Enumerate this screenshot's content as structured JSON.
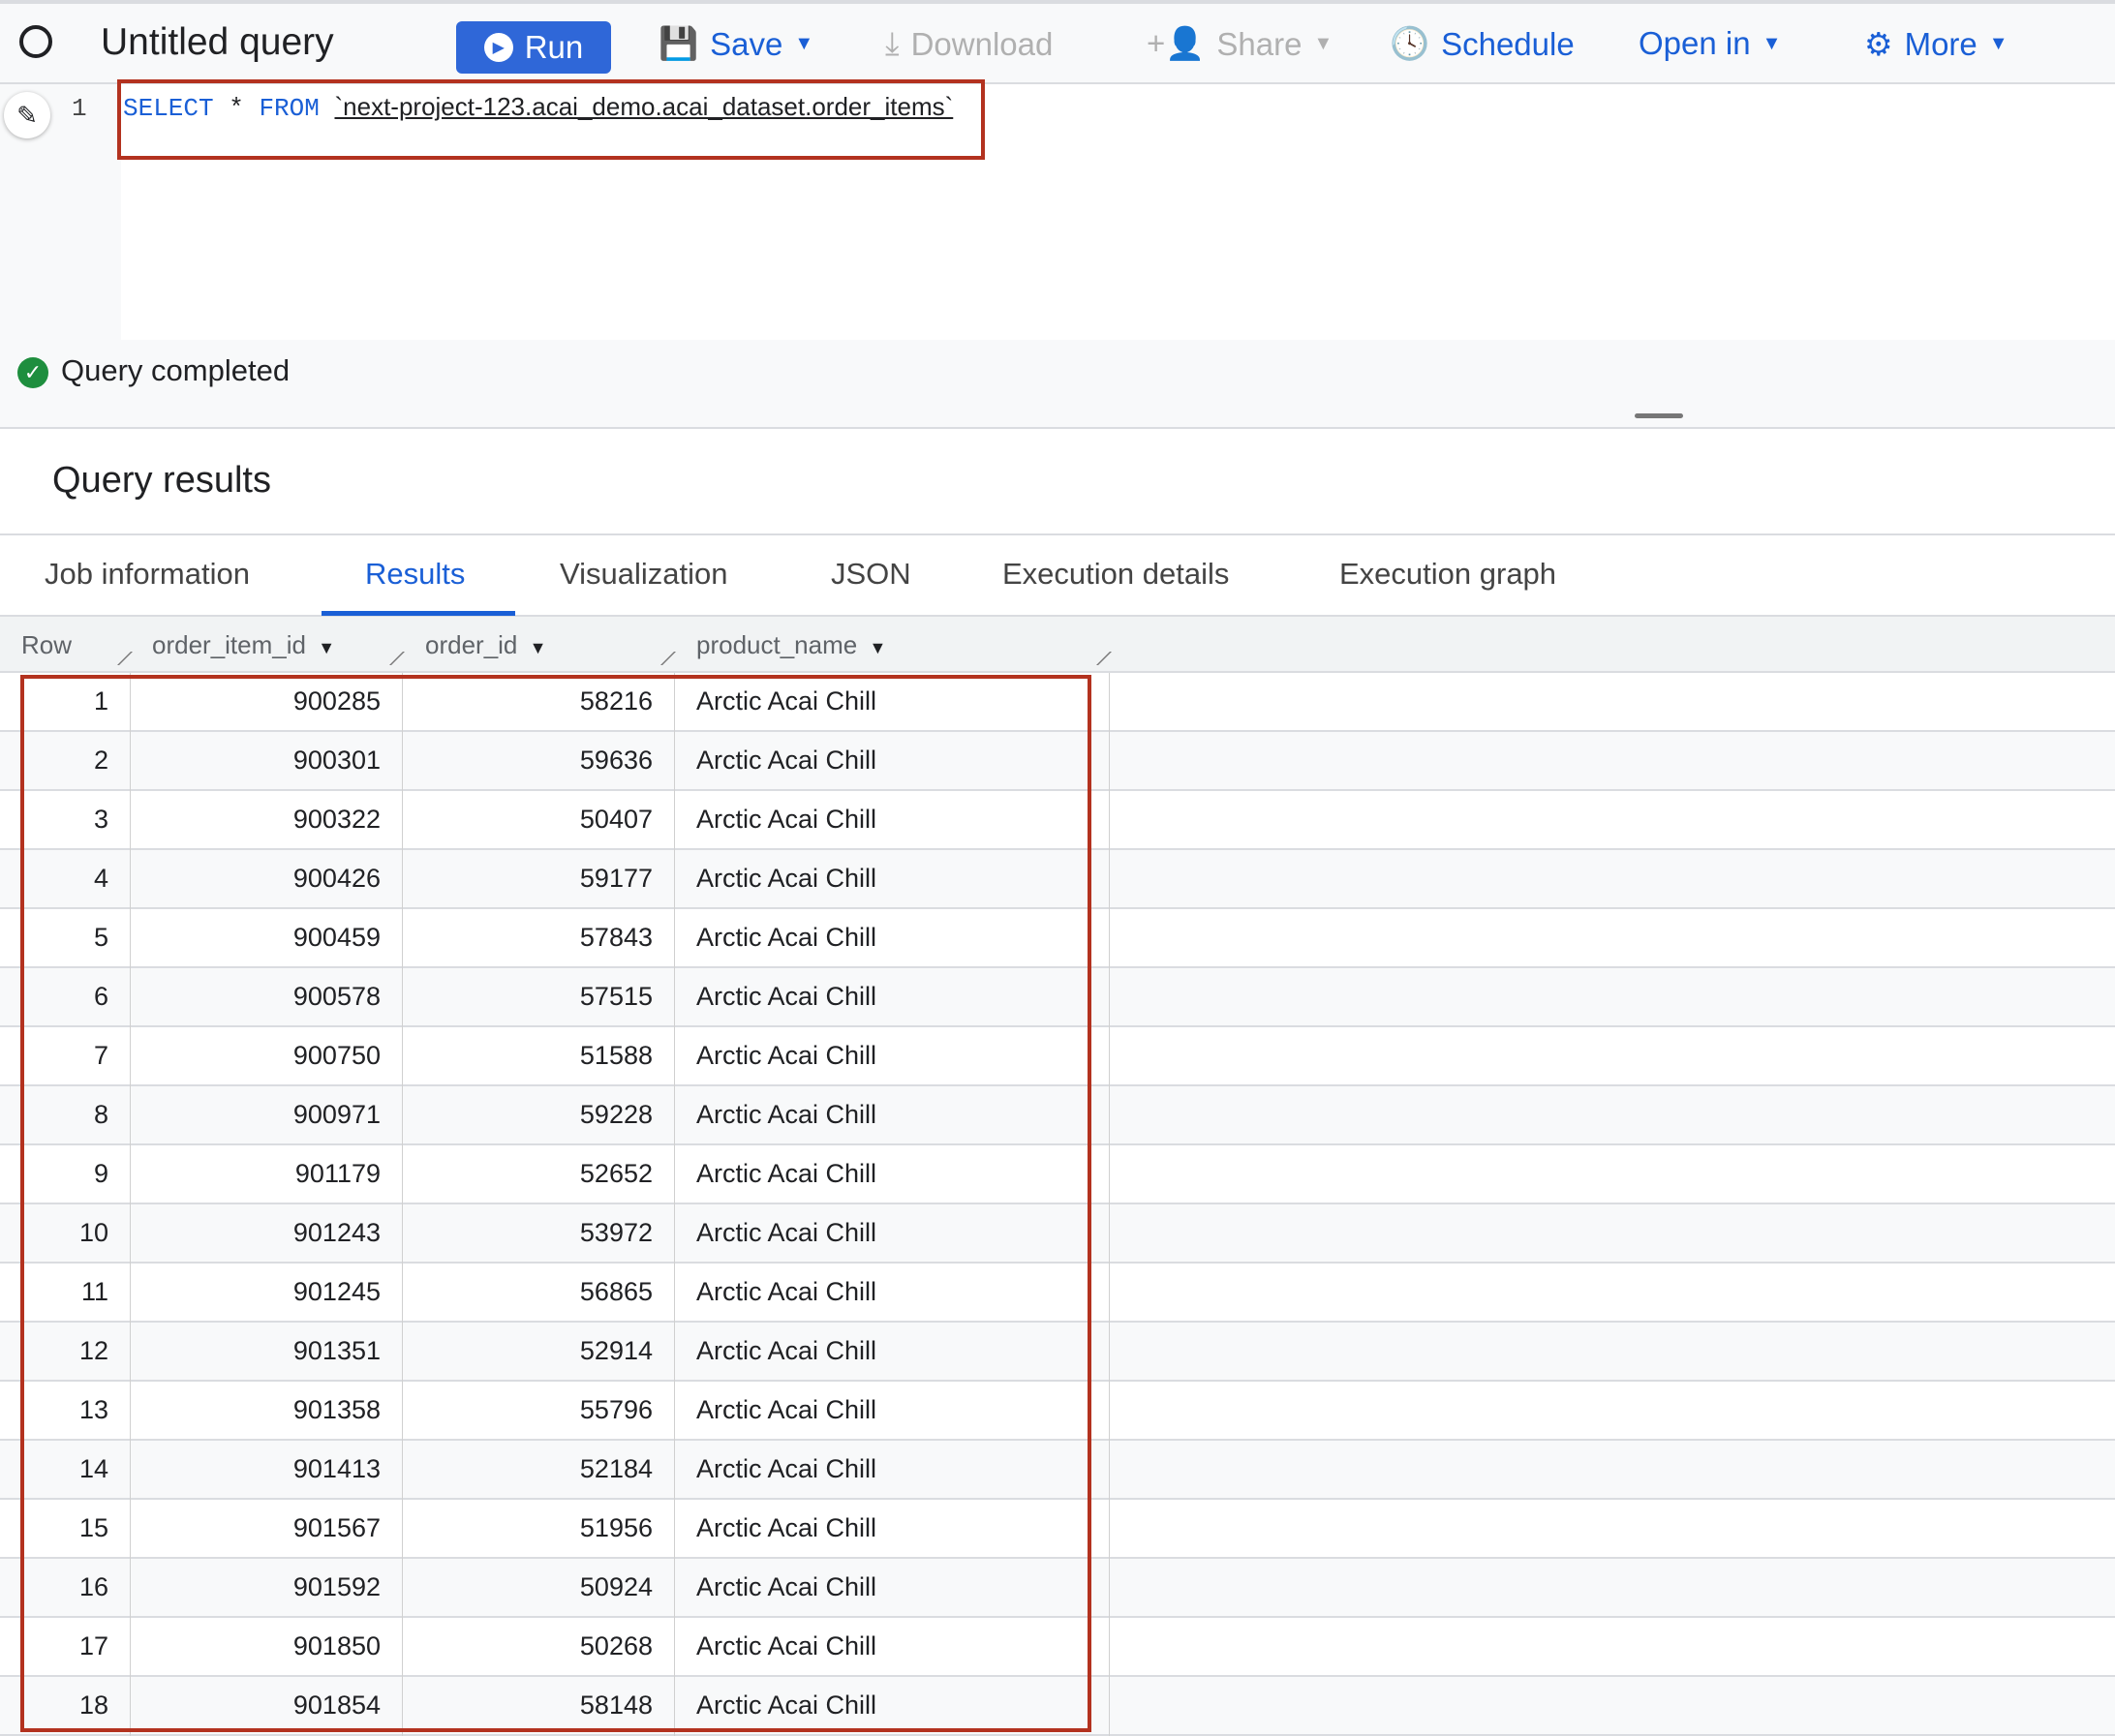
{
  "toolbar": {
    "title": "Untitled query",
    "run": "Run",
    "save": "Save",
    "download": "Download",
    "share": "Share",
    "schedule": "Schedule",
    "open_in": "Open in",
    "more": "More",
    "accent": "#2f67d8"
  },
  "editor": {
    "line_number": "1",
    "keyword_select": "SELECT",
    "star": "*",
    "keyword_from": "FROM",
    "table_ref": "`next-project-123.acai_demo.acai_dataset.order_items`"
  },
  "status": {
    "text": "Query completed"
  },
  "results": {
    "title": "Query results",
    "tabs": [
      {
        "label": "Job information"
      },
      {
        "label": "Results",
        "active": true
      },
      {
        "label": "Visualization"
      },
      {
        "label": "JSON"
      },
      {
        "label": "Execution details"
      },
      {
        "label": "Execution graph"
      }
    ],
    "columns": [
      "Row",
      "order_item_id",
      "order_id",
      "product_name"
    ],
    "rows": [
      [
        "1",
        "900285",
        "58216",
        "Arctic Acai Chill"
      ],
      [
        "2",
        "900301",
        "59636",
        "Arctic Acai Chill"
      ],
      [
        "3",
        "900322",
        "50407",
        "Arctic Acai Chill"
      ],
      [
        "4",
        "900426",
        "59177",
        "Arctic Acai Chill"
      ],
      [
        "5",
        "900459",
        "57843",
        "Arctic Acai Chill"
      ],
      [
        "6",
        "900578",
        "57515",
        "Arctic Acai Chill"
      ],
      [
        "7",
        "900750",
        "51588",
        "Arctic Acai Chill"
      ],
      [
        "8",
        "900971",
        "59228",
        "Arctic Acai Chill"
      ],
      [
        "9",
        "901179",
        "52652",
        "Arctic Acai Chill"
      ],
      [
        "10",
        "901243",
        "53972",
        "Arctic Acai Chill"
      ],
      [
        "11",
        "901245",
        "56865",
        "Arctic Acai Chill"
      ],
      [
        "12",
        "901351",
        "52914",
        "Arctic Acai Chill"
      ],
      [
        "13",
        "901358",
        "55796",
        "Arctic Acai Chill"
      ],
      [
        "14",
        "901413",
        "52184",
        "Arctic Acai Chill"
      ],
      [
        "15",
        "901567",
        "51956",
        "Arctic Acai Chill"
      ],
      [
        "16",
        "901592",
        "50924",
        "Arctic Acai Chill"
      ],
      [
        "17",
        "901850",
        "50268",
        "Arctic Acai Chill"
      ],
      [
        "18",
        "901854",
        "58148",
        "Arctic Acai Chill"
      ]
    ]
  }
}
